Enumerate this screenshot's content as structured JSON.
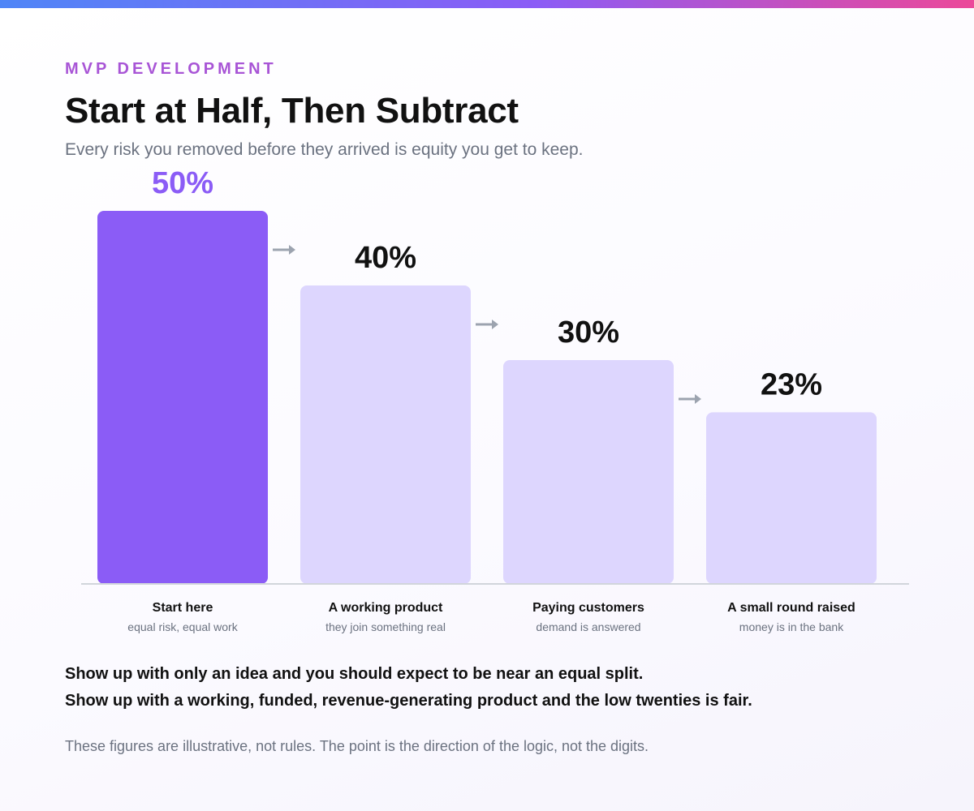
{
  "header": {
    "eyebrow": "MVP DEVELOPMENT",
    "title": "Start at Half, Then Subtract",
    "subtitle": "Every risk you removed before they arrived is equity you get to keep."
  },
  "colors": {
    "accent": "#8b5cf6",
    "bar_muted": "#ddd6fe",
    "arrow": "#9ca3af",
    "baseline": "#d1d5db"
  },
  "chart_data": {
    "type": "bar",
    "categories": [
      "Start here",
      "A working product",
      "Paying customers",
      "A small round raised"
    ],
    "category_notes": [
      "equal risk, equal work",
      "they join something real",
      "demand is answered",
      "money is in the bank"
    ],
    "values": [
      50,
      40,
      30,
      23
    ],
    "value_labels": [
      "50%",
      "40%",
      "30%",
      "23%"
    ],
    "highlight_index": 0,
    "ylim": [
      0,
      50
    ],
    "grid": false
  },
  "takeaways": [
    "Show up with only an idea and you should expect to be near an equal split.",
    "Show up with a working, funded, revenue-generating product and the low twenties is fair."
  ],
  "footnote": "These figures are illustrative, not rules. The point is the direction of the logic, not the digits."
}
